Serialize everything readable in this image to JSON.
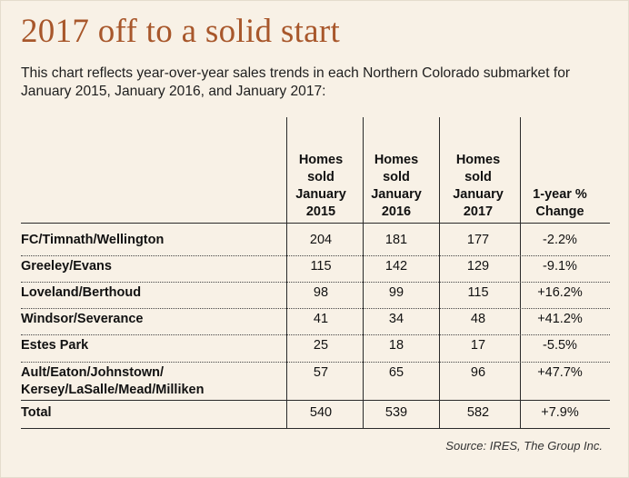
{
  "title": "2017 off to a solid start",
  "subtitle": "This chart reflects year-over-year sales trends in each Northern Colorado submarket for January 2015, January 2016, and January 2017:",
  "source": "Source: IRES, The Group Inc.",
  "colors": {
    "title": "#a8572b",
    "background": "#f8f1e6"
  },
  "chart_data": {
    "type": "table",
    "columns": [
      {
        "lines": [
          "Homes",
          "sold",
          "January",
          "2015"
        ]
      },
      {
        "lines": [
          "Homes",
          "sold",
          "January",
          "2016"
        ]
      },
      {
        "lines": [
          "Homes",
          "sold",
          "January",
          "2017"
        ]
      },
      {
        "lines": [
          "1-year %",
          "Change"
        ]
      }
    ],
    "rows": [
      {
        "label": [
          "FC/Timnath/Wellington"
        ],
        "values": [
          "204",
          "181",
          "177",
          "-2.2%"
        ]
      },
      {
        "label": [
          "Greeley/Evans"
        ],
        "values": [
          "115",
          "142",
          "129",
          "-9.1%"
        ]
      },
      {
        "label": [
          "Loveland/Berthoud"
        ],
        "values": [
          "98",
          "99",
          "115",
          "+16.2%"
        ]
      },
      {
        "label": [
          "Windsor/Severance"
        ],
        "values": [
          "41",
          "34",
          "48",
          "+41.2%"
        ]
      },
      {
        "label": [
          "Estes Park"
        ],
        "values": [
          "25",
          "18",
          "17",
          "-5.5%"
        ]
      },
      {
        "label": [
          "Ault/Eaton/Johnstown/",
          "Kersey/LaSalle/Mead/Milliken"
        ],
        "values": [
          "57",
          "65",
          "96",
          "+47.7%"
        ]
      }
    ],
    "total": {
      "label": "Total",
      "values": [
        "540",
        "539",
        "582",
        "+7.9%"
      ]
    }
  }
}
